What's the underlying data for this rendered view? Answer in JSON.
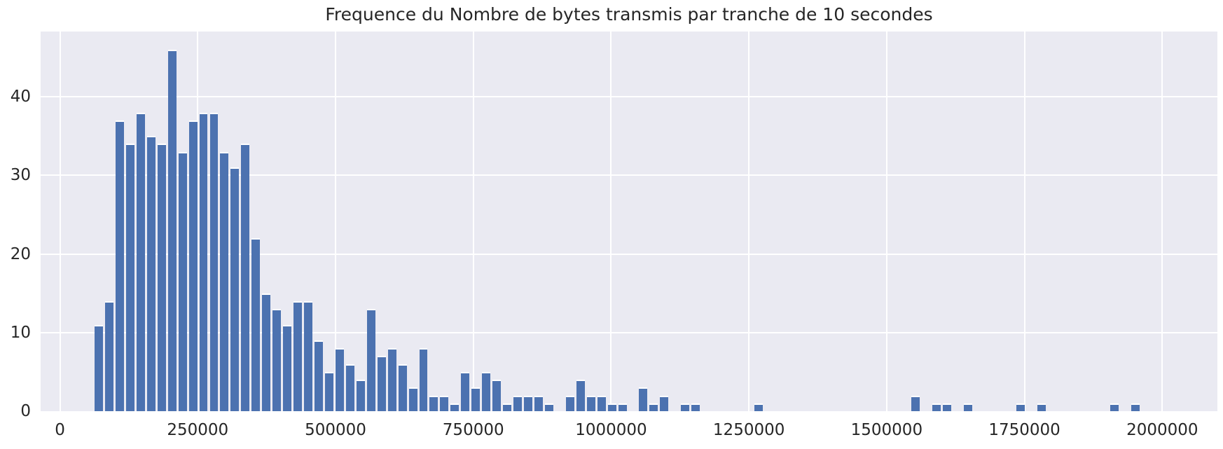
{
  "chart_data": {
    "type": "bar",
    "subtype": "histogram",
    "title": "Frequence du Nombre de bytes transmis par tranche de 10 secondes",
    "xlabel": "",
    "ylabel": "",
    "legend": "none",
    "grid": "on",
    "bin_start": 61000,
    "bin_width": 19000,
    "counts": [
      11,
      14,
      37,
      34,
      38,
      35,
      34,
      46,
      33,
      37,
      38,
      38,
      33,
      31,
      34,
      22,
      15,
      13,
      11,
      14,
      14,
      9,
      5,
      8,
      6,
      4,
      13,
      7,
      8,
      6,
      3,
      8,
      2,
      2,
      1,
      5,
      3,
      5,
      4,
      1,
      2,
      2,
      2,
      1,
      0,
      2,
      4,
      2,
      2,
      1,
      1,
      0,
      3,
      1,
      2,
      0,
      1,
      1,
      0,
      0,
      0,
      0,
      0,
      1,
      0,
      0,
      0,
      0,
      0,
      0,
      0,
      0,
      0,
      0,
      0,
      0,
      0,
      0,
      2,
      0,
      1,
      1,
      0,
      1,
      0,
      0,
      0,
      0,
      1,
      0,
      1,
      0,
      0,
      0,
      0,
      0,
      0,
      1,
      0,
      1
    ],
    "xlim": [
      -35000,
      2100000
    ],
    "ylim": [
      0,
      48.3
    ],
    "x_ticks": [
      {
        "value": 0,
        "label": "0"
      },
      {
        "value": 250000,
        "label": "250000"
      },
      {
        "value": 500000,
        "label": "500000"
      },
      {
        "value": 750000,
        "label": "750000"
      },
      {
        "value": 1000000,
        "label": "1000000"
      },
      {
        "value": 1250000,
        "label": "1250000"
      },
      {
        "value": 1500000,
        "label": "1500000"
      },
      {
        "value": 1750000,
        "label": "1750000"
      },
      {
        "value": 2000000,
        "label": "2000000"
      }
    ],
    "y_ticks": [
      {
        "value": 0,
        "label": "0"
      },
      {
        "value": 10,
        "label": "10"
      },
      {
        "value": 20,
        "label": "20"
      },
      {
        "value": 30,
        "label": "30"
      },
      {
        "value": 40,
        "label": "40"
      }
    ],
    "colors": {
      "bar": "#4C72B0",
      "plot_background": "#EAEAF2",
      "gridline": "#FFFFFF",
      "text": "#262626",
      "figure_background": "#FFFFFF"
    }
  }
}
